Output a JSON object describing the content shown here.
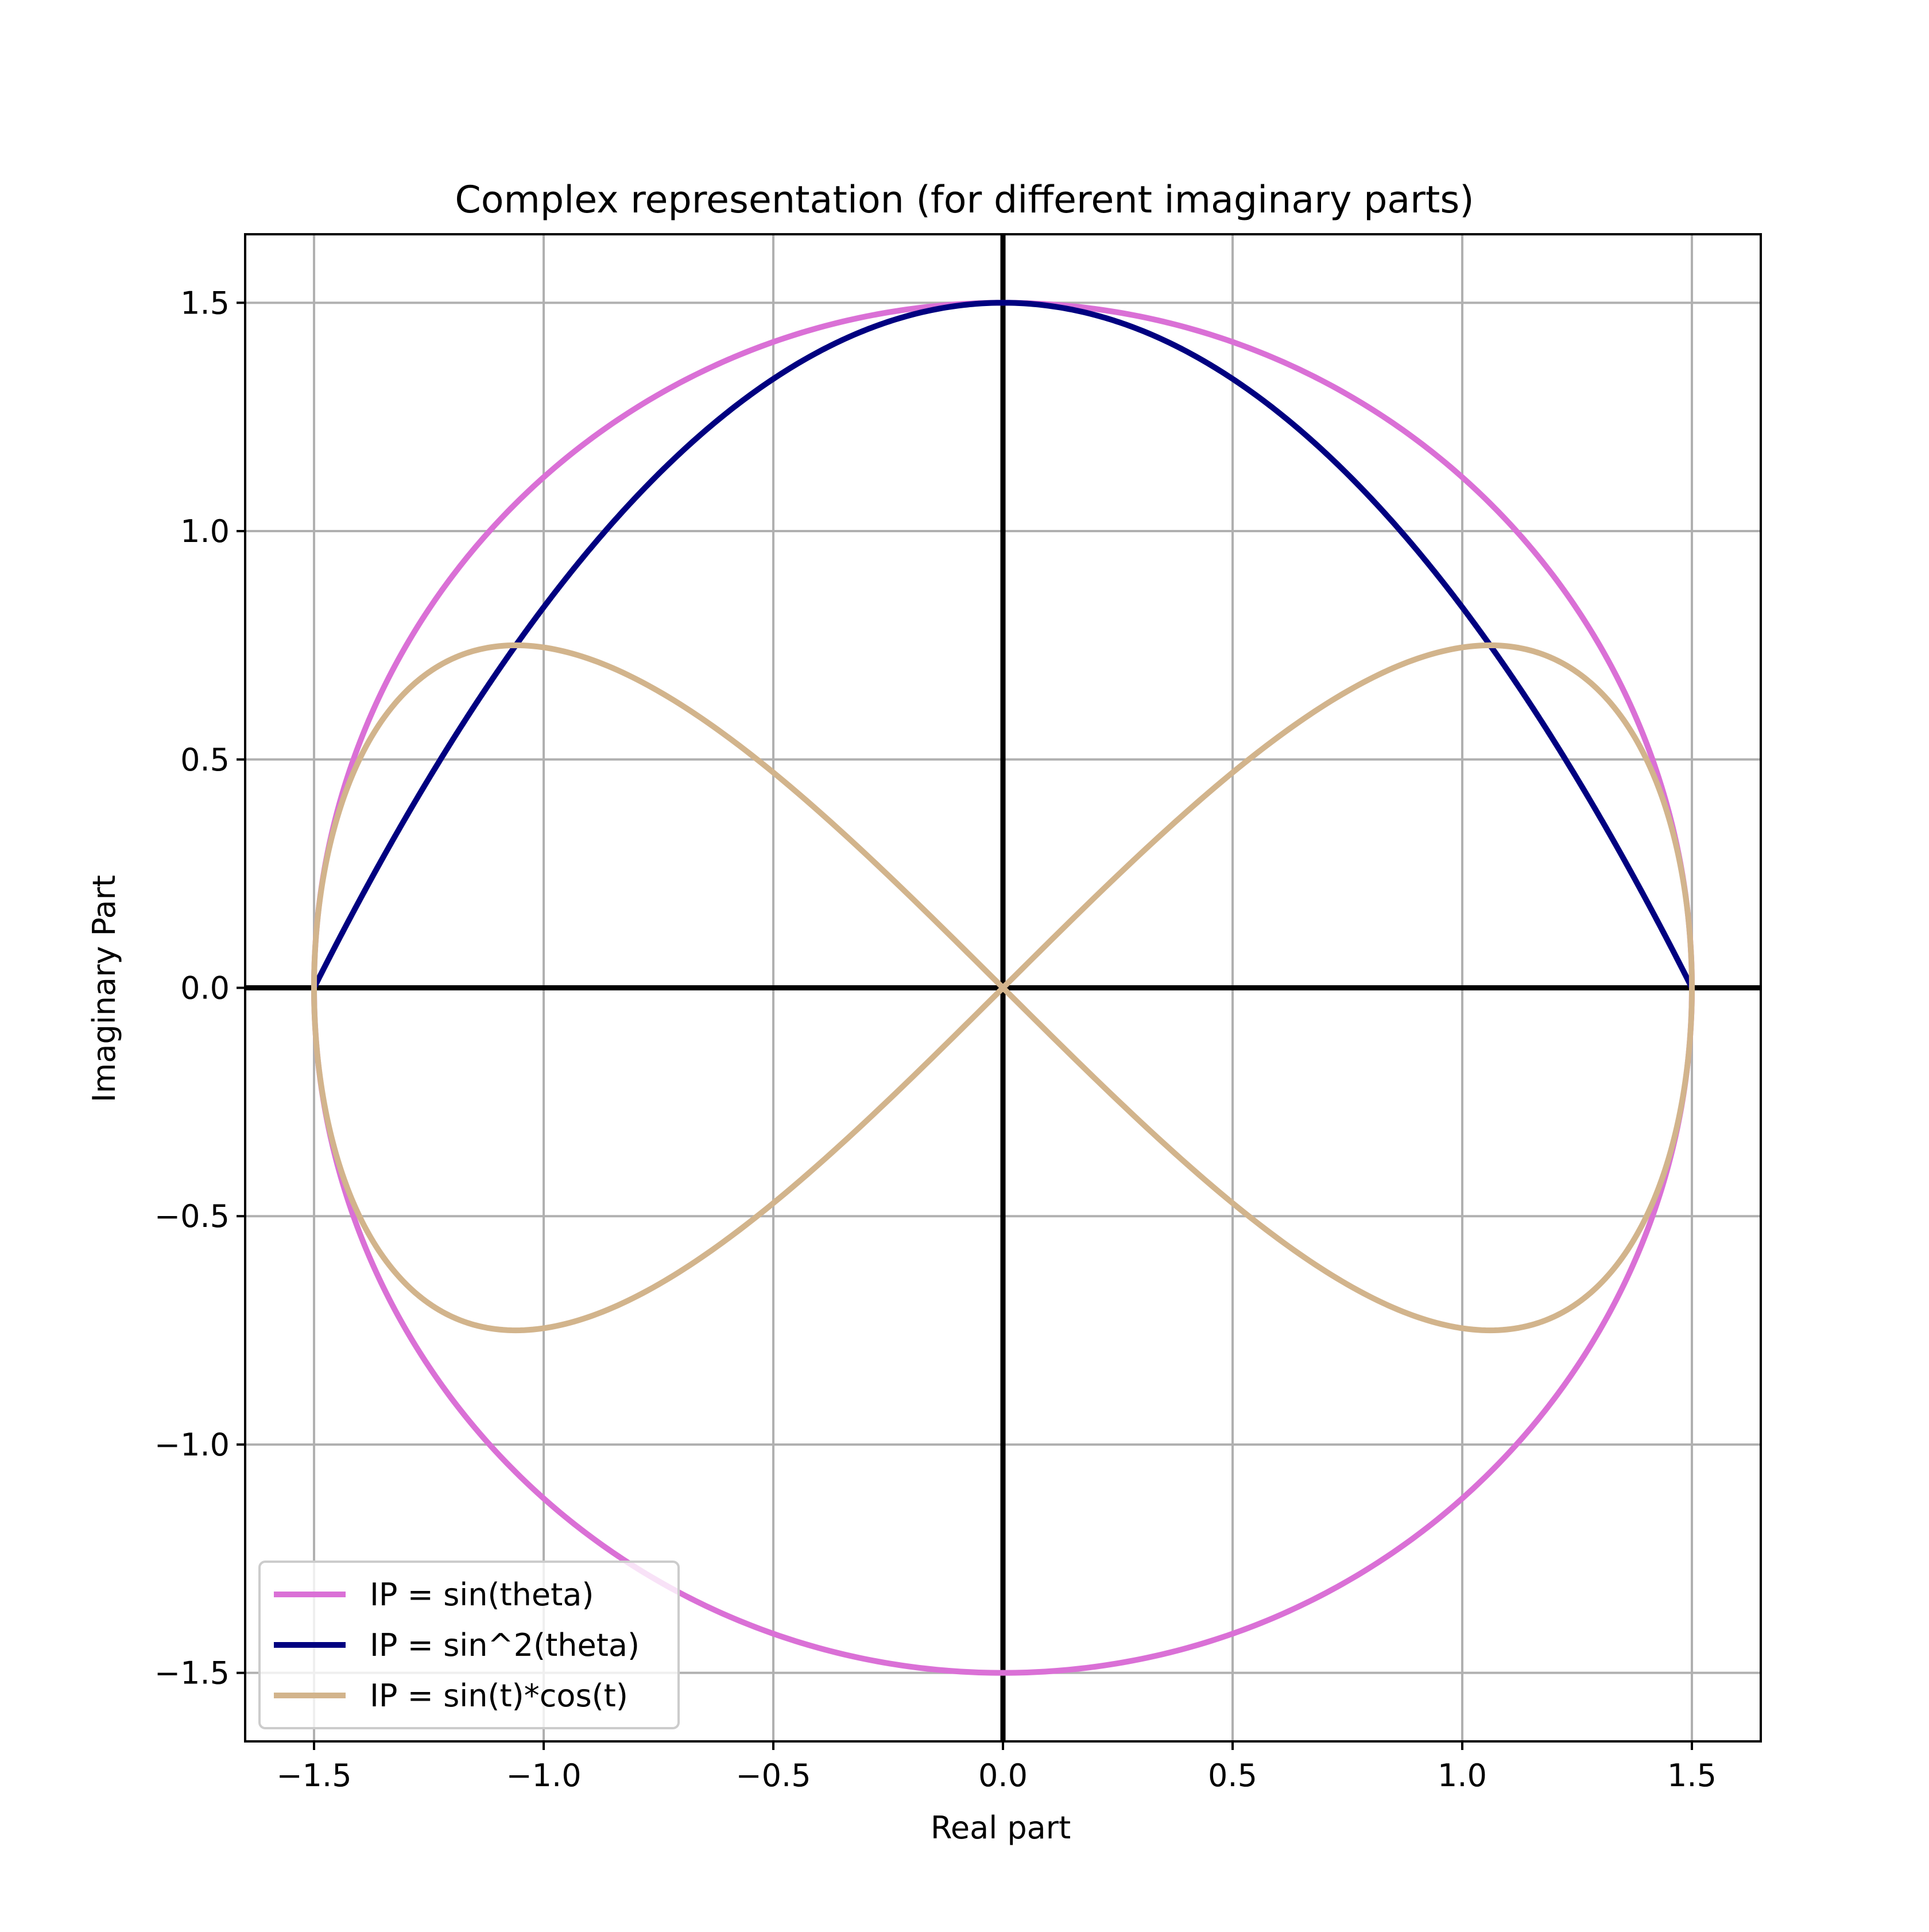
{
  "chart_data": {
    "type": "line",
    "title": "Complex representation (for different imaginary parts)",
    "xlabel": "Real part",
    "ylabel": "Imaginary Part",
    "xlim": [
      -1.65,
      1.65
    ],
    "ylim": [
      -1.65,
      1.65
    ],
    "xticks": [
      -1.5,
      -1.0,
      -0.5,
      0.0,
      0.5,
      1.0,
      1.5
    ],
    "yticks": [
      -1.5,
      -1.0,
      -0.5,
      0.0,
      0.5,
      1.0,
      1.5
    ],
    "xtick_labels": [
      "−1.5",
      "−1.0",
      "−0.5",
      "0.0",
      "0.5",
      "1.0",
      "1.5"
    ],
    "ytick_labels": [
      "−1.5",
      "−1.0",
      "−0.5",
      "0.0",
      "0.5",
      "1.0",
      "1.5"
    ],
    "grid": true,
    "legend_position": "lower-left",
    "reference_lines": [
      "x = 0",
      "y = 0"
    ],
    "series": [
      {
        "name": "IP = sin(theta)",
        "color": "#da70d6",
        "x_formula": "1.5*cos(theta)",
        "y_formula": "1.5*sin(theta)",
        "theta_range": [
          0,
          6.283185307
        ],
        "sample_points": [
          {
            "x": 1.5,
            "y": 0.0
          },
          {
            "x": 1.06,
            "y": 1.06
          },
          {
            "x": 0.0,
            "y": 1.5
          },
          {
            "x": -1.06,
            "y": 1.06
          },
          {
            "x": -1.5,
            "y": 0.0
          },
          {
            "x": -1.06,
            "y": -1.06
          },
          {
            "x": 0.0,
            "y": -1.5
          },
          {
            "x": 1.06,
            "y": -1.06
          },
          {
            "x": 1.5,
            "y": 0.0
          }
        ]
      },
      {
        "name": "IP = sin^2(theta)",
        "color": "#000080",
        "x_formula": "1.5*cos(theta)",
        "y_formula": "1.5*sin(theta)^2",
        "theta_range": [
          0,
          3.141592654
        ],
        "sample_points": [
          {
            "x": 1.5,
            "y": 0.0
          },
          {
            "x": 1.06,
            "y": 0.75
          },
          {
            "x": 0.0,
            "y": 1.5
          },
          {
            "x": -1.06,
            "y": 0.75
          },
          {
            "x": -1.5,
            "y": 0.0
          }
        ]
      },
      {
        "name": "IP = sin(t)*cos(t)",
        "color": "#d2b48c",
        "x_formula": "1.5*cos(t)",
        "y_formula": "1.5*sin(2t)/2",
        "theta_range": [
          0,
          6.283185307
        ],
        "sample_points": [
          {
            "x": 1.5,
            "y": 0.0
          },
          {
            "x": 1.06,
            "y": 0.75
          },
          {
            "x": 0.0,
            "y": 0.0
          },
          {
            "x": -1.06,
            "y": -0.75
          },
          {
            "x": -1.5,
            "y": 0.0
          },
          {
            "x": -1.06,
            "y": 0.75
          },
          {
            "x": 0.0,
            "y": 0.0
          },
          {
            "x": 1.06,
            "y": -0.75
          },
          {
            "x": 1.5,
            "y": 0.0
          }
        ]
      }
    ]
  }
}
